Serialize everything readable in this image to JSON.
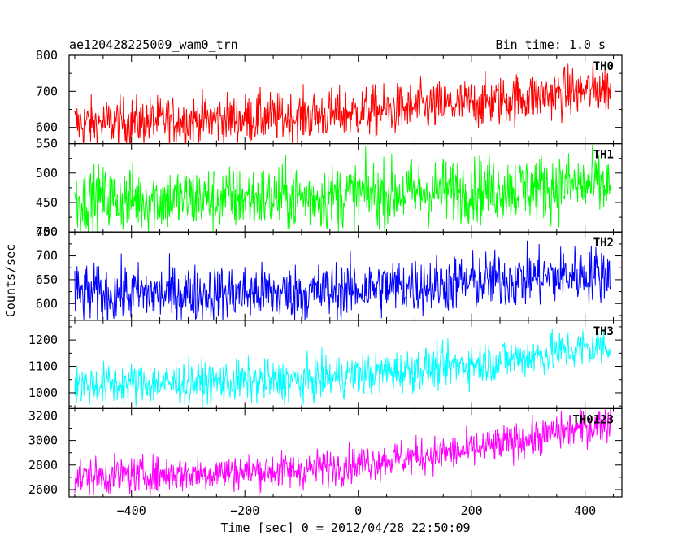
{
  "header": {
    "title": "ae120428225009_wam0_trn",
    "bin_time": "Bin time: 1.0 s"
  },
  "chart_data": {
    "type": "line",
    "xlabel": "Time [sec] 0 = 2012/04/28 22:50:09",
    "ylabel": "Counts/sec",
    "xlim": [
      -510,
      465
    ],
    "x_range_data": [
      -500,
      445
    ],
    "x_ticks": [
      -400,
      -200,
      0,
      200,
      400
    ],
    "x_tick_labels": [
      "−400",
      "−200",
      "0",
      "200",
      "400"
    ],
    "grid": false,
    "panels": [
      {
        "name": "TH0",
        "color": "#ff0000",
        "ylim": [
          555,
          800
        ],
        "y_ticks": [
          600,
          700,
          800
        ],
        "y_tick_labels": [
          "600",
          "700",
          "800"
        ],
        "trend": [
          [
            -500,
            610
          ],
          [
            -100,
            630
          ],
          [
            200,
            665
          ],
          [
            445,
            710
          ]
        ],
        "noise_amplitude": 35
      },
      {
        "name": "TH1",
        "color": "#00ff00",
        "ylim": [
          400,
          550
        ],
        "y_ticks": [
          400,
          450,
          500,
          550
        ],
        "y_tick_labels": [
          "400",
          "450",
          "500",
          "550"
        ],
        "trend": [
          [
            -500,
            455
          ],
          [
            -100,
            458
          ],
          [
            200,
            472
          ],
          [
            445,
            480
          ]
        ],
        "noise_amplitude": 28
      },
      {
        "name": "TH2",
        "color": "#0000ff",
        "ylim": [
          565,
          750
        ],
        "y_ticks": [
          600,
          650,
          700,
          750
        ],
        "y_tick_labels": [
          "600",
          "650",
          "700",
          "750"
        ],
        "trend": [
          [
            -500,
            620
          ],
          [
            -100,
            622
          ],
          [
            200,
            645
          ],
          [
            445,
            665
          ]
        ],
        "noise_amplitude": 30
      },
      {
        "name": "TH3",
        "color": "#00ffff",
        "ylim": [
          940,
          1275
        ],
        "y_ticks": [
          1000,
          1100,
          1200
        ],
        "y_tick_labels": [
          "1000",
          "1100",
          "1200"
        ],
        "trend": [
          [
            -500,
            1030
          ],
          [
            -100,
            1045
          ],
          [
            200,
            1110
          ],
          [
            445,
            1180
          ]
        ],
        "noise_amplitude": 40
      },
      {
        "name": "TH0123",
        "color": "#ff00ff",
        "ylim": [
          2540,
          3260
        ],
        "y_ticks": [
          2600,
          2800,
          3000,
          3200
        ],
        "y_tick_labels": [
          "2600",
          "2800",
          "3000",
          "3200"
        ],
        "trend": [
          [
            -500,
            2700
          ],
          [
            -100,
            2760
          ],
          [
            200,
            2920
          ],
          [
            445,
            3150
          ]
        ],
        "noise_amplitude": 75
      }
    ]
  }
}
